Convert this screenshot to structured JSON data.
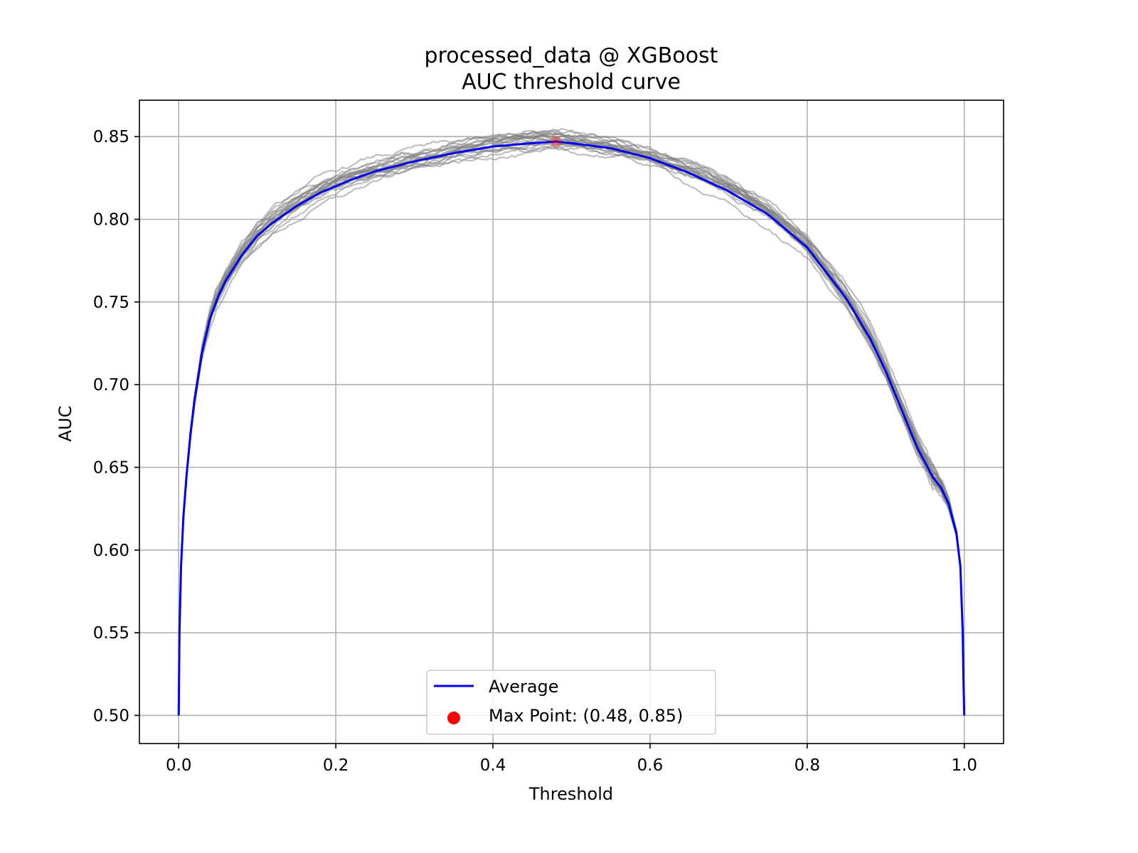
{
  "chart_data": {
    "type": "line",
    "title_line1": "processed_data @ XGBoost",
    "title_line2": "AUC threshold curve",
    "xlabel": "Threshold",
    "ylabel": "AUC",
    "xlim": [
      -0.05,
      1.05
    ],
    "ylim": [
      0.483,
      0.872
    ],
    "grid": true,
    "legend_position": "lower center",
    "x_ticks": [
      "0.0",
      "0.2",
      "0.4",
      "0.6",
      "0.8",
      "1.0"
    ],
    "y_ticks": [
      "0.50",
      "0.55",
      "0.60",
      "0.65",
      "0.70",
      "0.75",
      "0.80",
      "0.85"
    ],
    "colors": {
      "average": "#0000ee",
      "folds": "#808080",
      "max_point": "#ff0000"
    },
    "average": {
      "name": "Average",
      "x": [
        0.0,
        0.001,
        0.003,
        0.006,
        0.01,
        0.015,
        0.02,
        0.03,
        0.04,
        0.05,
        0.06,
        0.08,
        0.1,
        0.12,
        0.15,
        0.18,
        0.2,
        0.22,
        0.25,
        0.3,
        0.35,
        0.4,
        0.45,
        0.48,
        0.5,
        0.55,
        0.6,
        0.65,
        0.7,
        0.75,
        0.8,
        0.85,
        0.88,
        0.9,
        0.92,
        0.94,
        0.96,
        0.97,
        0.98,
        0.99,
        0.995,
        0.998,
        0.999,
        1.0
      ],
      "y": [
        0.5,
        0.55,
        0.59,
        0.62,
        0.645,
        0.67,
        0.69,
        0.72,
        0.74,
        0.753,
        0.763,
        0.778,
        0.79,
        0.798,
        0.808,
        0.816,
        0.82,
        0.824,
        0.829,
        0.835,
        0.84,
        0.844,
        0.846,
        0.847,
        0.846,
        0.843,
        0.837,
        0.828,
        0.817,
        0.803,
        0.783,
        0.752,
        0.728,
        0.708,
        0.685,
        0.662,
        0.644,
        0.638,
        0.628,
        0.61,
        0.59,
        0.55,
        0.52,
        0.5
      ]
    },
    "max_point": {
      "x": 0.48,
      "y": 0.847,
      "label": "Max Point: (0.48, 0.85)"
    },
    "fold_count": 20
  }
}
